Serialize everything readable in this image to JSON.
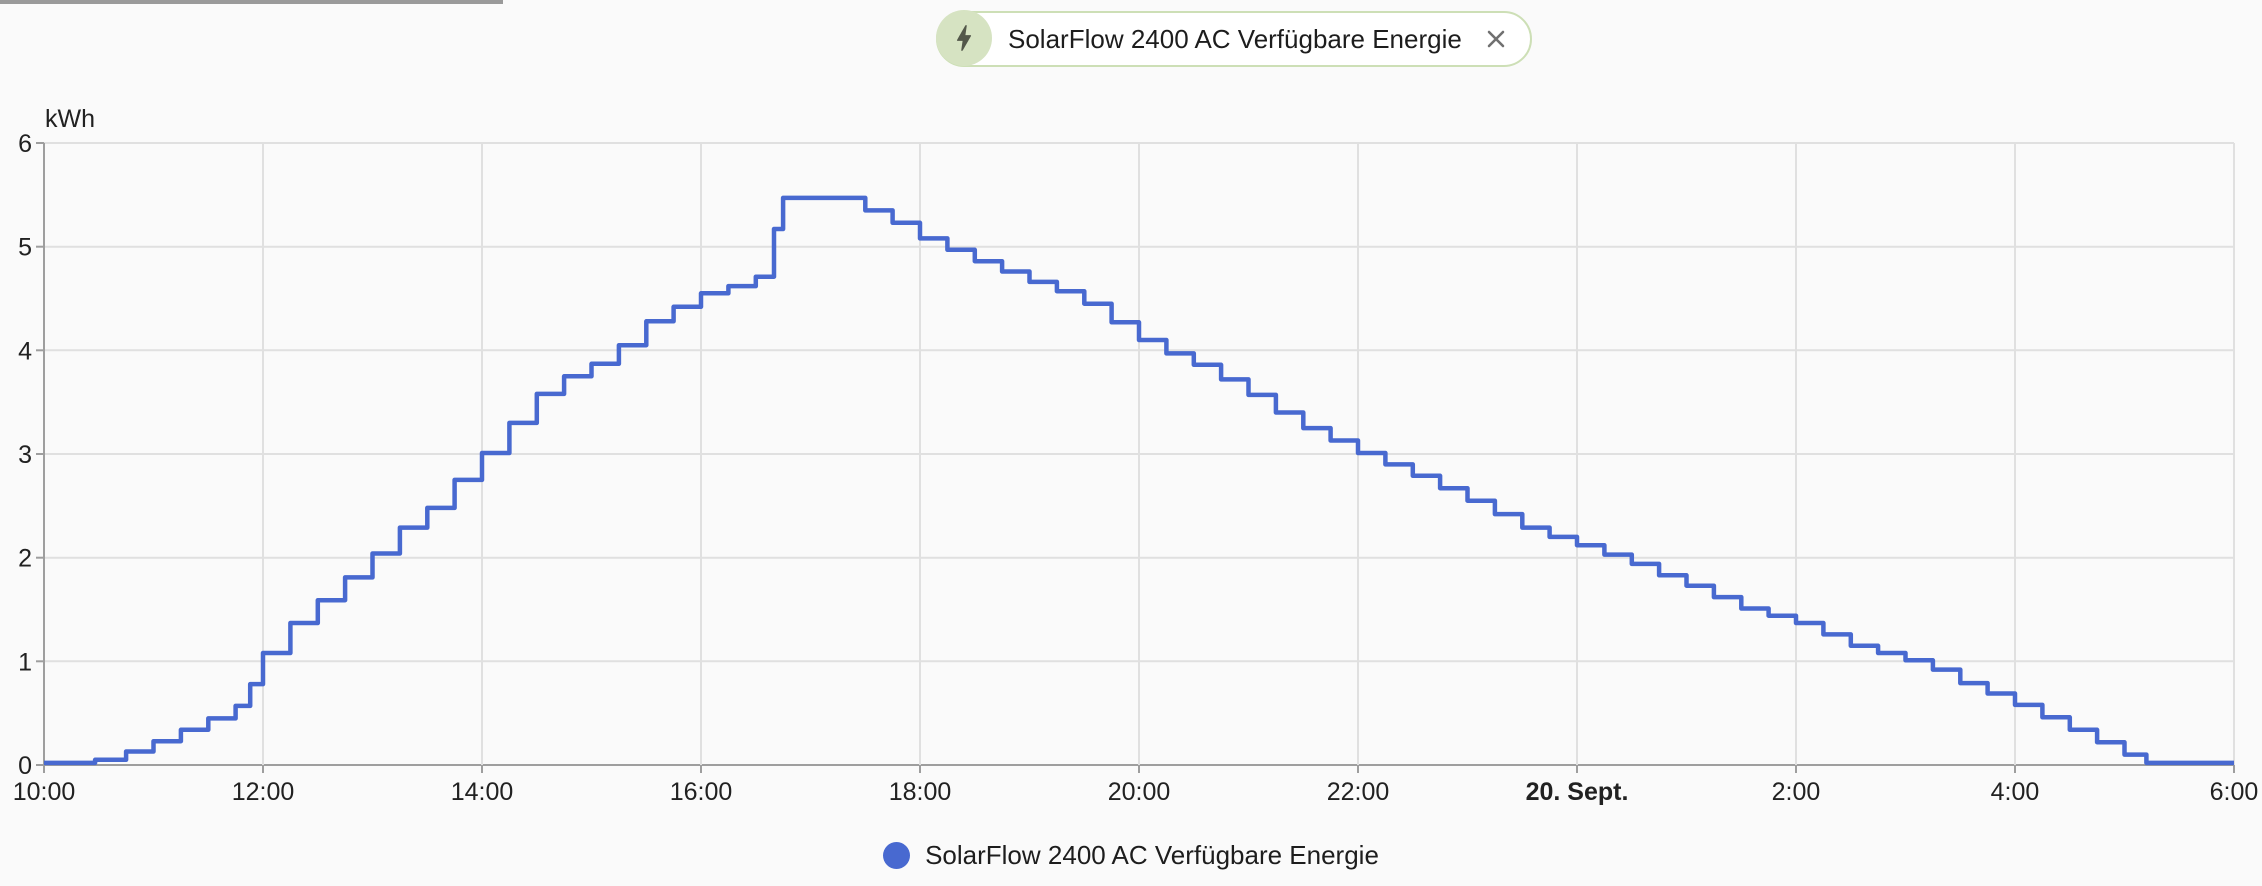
{
  "header_chip": {
    "label": "SolarFlow 2400 AC Verfügbare Energie",
    "icon": "flash-icon",
    "icon_bg": "#d6e3c2",
    "icon_color": "#53584a",
    "border_color": "#cddfb6",
    "close_icon": "close-x-icon",
    "close_color": "#707070"
  },
  "legend": {
    "label": "SolarFlow 2400 AC Verfügbare Energie",
    "dot_color": "#4869d0"
  },
  "colors": {
    "background": "#fafafa",
    "grid": "#e0e0e0",
    "axis": "#9e9e9e",
    "tick_text": "#212121",
    "series_line": "#4869d0"
  },
  "chart_data": {
    "type": "line",
    "step": "after",
    "title": "SolarFlow 2400 AC Verfügbare Energie",
    "ylabel": "kWh",
    "ylim": [
      0,
      6
    ],
    "y_ticks": [
      0,
      1,
      2,
      3,
      4,
      5,
      6
    ],
    "x_range_minutes": [
      0,
      1200
    ],
    "x_ticks": [
      {
        "label": "10:00",
        "minutes": 0,
        "bold": false
      },
      {
        "label": "12:00",
        "minutes": 120,
        "bold": false
      },
      {
        "label": "14:00",
        "minutes": 240,
        "bold": false
      },
      {
        "label": "16:00",
        "minutes": 360,
        "bold": false
      },
      {
        "label": "18:00",
        "minutes": 480,
        "bold": false
      },
      {
        "label": "20:00",
        "minutes": 600,
        "bold": false
      },
      {
        "label": "22:00",
        "minutes": 720,
        "bold": false
      },
      {
        "label": "20. Sept.",
        "minutes": 840,
        "bold": true
      },
      {
        "label": "2:00",
        "minutes": 960,
        "bold": false
      },
      {
        "label": "4:00",
        "minutes": 1080,
        "bold": false
      },
      {
        "label": "6:00",
        "minutes": 1200,
        "bold": false
      }
    ],
    "grid": true,
    "legend_position": "bottom",
    "series": [
      {
        "name": "SolarFlow 2400 AC Verfügbare Energie",
        "color": "#4869d0",
        "unit": "kWh",
        "points": [
          [
            0,
            0.02
          ],
          [
            15,
            0.02
          ],
          [
            28,
            0.05
          ],
          [
            45,
            0.13
          ],
          [
            60,
            0.23
          ],
          [
            75,
            0.34
          ],
          [
            90,
            0.45
          ],
          [
            105,
            0.57
          ],
          [
            113,
            0.78
          ],
          [
            120,
            1.08
          ],
          [
            135,
            1.37
          ],
          [
            150,
            1.59
          ],
          [
            165,
            1.81
          ],
          [
            180,
            2.04
          ],
          [
            195,
            2.29
          ],
          [
            210,
            2.48
          ],
          [
            225,
            2.75
          ],
          [
            240,
            3.01
          ],
          [
            255,
            3.3
          ],
          [
            270,
            3.58
          ],
          [
            285,
            3.75
          ],
          [
            300,
            3.87
          ],
          [
            315,
            4.05
          ],
          [
            330,
            4.28
          ],
          [
            345,
            4.42
          ],
          [
            360,
            4.55
          ],
          [
            375,
            4.62
          ],
          [
            390,
            4.71
          ],
          [
            400,
            5.17
          ],
          [
            405,
            5.47
          ],
          [
            420,
            5.47
          ],
          [
            435,
            5.47
          ],
          [
            450,
            5.35
          ],
          [
            465,
            5.23
          ],
          [
            480,
            5.08
          ],
          [
            495,
            4.97
          ],
          [
            510,
            4.86
          ],
          [
            525,
            4.76
          ],
          [
            540,
            4.66
          ],
          [
            555,
            4.57
          ],
          [
            570,
            4.45
          ],
          [
            585,
            4.27
          ],
          [
            600,
            4.1
          ],
          [
            615,
            3.97
          ],
          [
            630,
            3.86
          ],
          [
            645,
            3.72
          ],
          [
            660,
            3.57
          ],
          [
            675,
            3.4
          ],
          [
            690,
            3.25
          ],
          [
            705,
            3.13
          ],
          [
            720,
            3.01
          ],
          [
            735,
            2.9
          ],
          [
            750,
            2.79
          ],
          [
            765,
            2.67
          ],
          [
            780,
            2.55
          ],
          [
            795,
            2.42
          ],
          [
            810,
            2.29
          ],
          [
            825,
            2.2
          ],
          [
            840,
            2.12
          ],
          [
            855,
            2.03
          ],
          [
            870,
            1.94
          ],
          [
            885,
            1.83
          ],
          [
            900,
            1.73
          ],
          [
            915,
            1.62
          ],
          [
            930,
            1.51
          ],
          [
            945,
            1.44
          ],
          [
            960,
            1.37
          ],
          [
            975,
            1.26
          ],
          [
            990,
            1.15
          ],
          [
            1005,
            1.08
          ],
          [
            1020,
            1.01
          ],
          [
            1035,
            0.92
          ],
          [
            1050,
            0.79
          ],
          [
            1065,
            0.69
          ],
          [
            1080,
            0.58
          ],
          [
            1095,
            0.46
          ],
          [
            1110,
            0.34
          ],
          [
            1125,
            0.22
          ],
          [
            1140,
            0.1
          ],
          [
            1152,
            0.02
          ],
          [
            1170,
            0.02
          ],
          [
            1185,
            0.02
          ],
          [
            1200,
            0.02
          ]
        ]
      }
    ]
  }
}
